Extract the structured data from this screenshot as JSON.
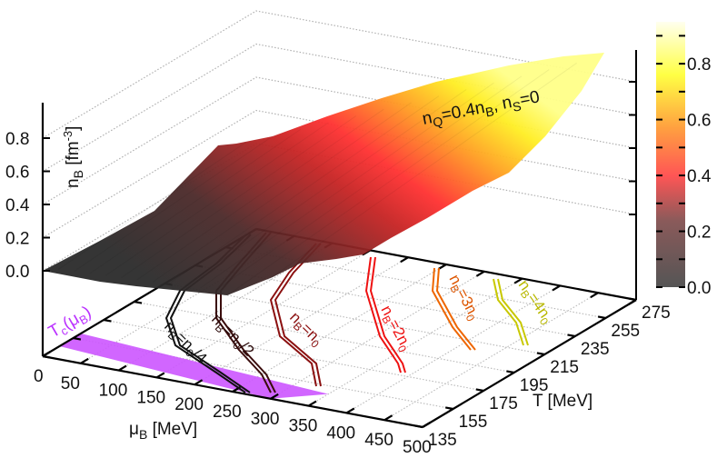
{
  "chart_data": {
    "type": "surface3d",
    "title": "",
    "annotation": "n_Q=0.4n_B, n_S=0",
    "annotation_parts": {
      "n1": "n",
      "s1": "Q",
      "mid": "=0.4n",
      "s2": "B",
      "mid2": ", n",
      "s3": "S",
      "end": "=0"
    },
    "x_axis": {
      "label": "μB [MeV]",
      "label_main": "μ",
      "label_sub": "B",
      "label_unit": " [MeV]",
      "range": [
        0,
        500
      ],
      "ticks": [
        "0",
        "50",
        "100",
        "150",
        "200",
        "250",
        "300",
        "350",
        "400",
        "450",
        "500"
      ]
    },
    "y_axis": {
      "label": "T [MeV]",
      "range": [
        135,
        275
      ],
      "ticks": [
        "135",
        "155",
        "175",
        "195",
        "215",
        "235",
        "255",
        "275"
      ]
    },
    "z_axis": {
      "label": "nB [fm-3]",
      "label_main": "n",
      "label_sub": "B",
      "label_unit": " [fm",
      "label_sup": "-3",
      "label_close": "]",
      "range": [
        0,
        0.95
      ],
      "ticks": [
        "0.0",
        "0.2",
        "0.4",
        "0.6",
        "0.8"
      ]
    },
    "colorbar": {
      "range": [
        0,
        0.95
      ],
      "ticks": [
        "0.0",
        "0.2",
        "0.4",
        "0.6",
        "0.8"
      ],
      "colormap": [
        "#555555",
        "#8a5a5a",
        "#ff5555",
        "#ffa040",
        "#ffff44",
        "#ffffee"
      ]
    },
    "surface": {
      "mu_samples": [
        0,
        100,
        200,
        300,
        400,
        500
      ],
      "T_samples": [
        135,
        175,
        215,
        255,
        275
      ],
      "nB_description": "increases with muB and T; max ~0.95 at (500, 275)"
    },
    "transition_band": {
      "label": "Tc(μB)",
      "label_main": "T",
      "label_sub1": "c",
      "label_paren": "(μ",
      "label_sub2": "B",
      "label_close": ")",
      "color": "#cc55ff",
      "mu_range": [
        0,
        350
      ]
    },
    "contours": [
      {
        "label": "nB=n0/4",
        "main": "n",
        "sub": "B",
        "eq": "=n",
        "sub2": "0",
        "tail": "/4",
        "color": "#111111"
      },
      {
        "label": "nB=n0/2",
        "main": "n",
        "sub": "B",
        "eq": "=n",
        "sub2": "0",
        "tail": "/2",
        "color": "#3a0c0c"
      },
      {
        "label": "nB=n0",
        "main": "n",
        "sub": "B",
        "eq": "=n",
        "sub2": "0",
        "tail": "",
        "color": "#8b1010"
      },
      {
        "label": "nB=2n0",
        "main": "n",
        "sub": "B",
        "eq": "=2n",
        "sub2": "0",
        "tail": "",
        "color": "#ee1111"
      },
      {
        "label": "nB=3n0",
        "main": "n",
        "sub": "B",
        "eq": "=3n",
        "sub2": "0",
        "tail": "",
        "color": "#ee6600"
      },
      {
        "label": "nB=4n0",
        "main": "n",
        "sub": "B",
        "eq": "=4n",
        "sub2": "0",
        "tail": "",
        "color": "#c8c800"
      }
    ]
  }
}
